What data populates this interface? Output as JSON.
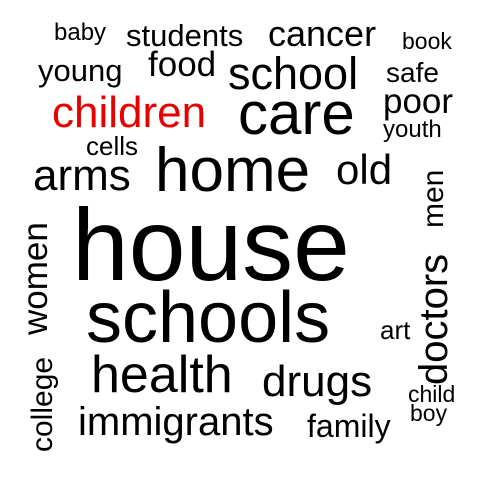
{
  "word_cloud": {
    "highlight_color": "#e60000",
    "text_color": "#000000",
    "background": "#ffffff",
    "words": {
      "baby": "baby",
      "students": "students",
      "cancer": "cancer",
      "book": "book",
      "young": "young",
      "food": "food",
      "school": "school",
      "safe": "safe",
      "children": "children",
      "care": "care",
      "poor": "poor",
      "youth": "youth",
      "cells": "cells",
      "arms": "arms",
      "home": "home",
      "old": "old",
      "men": "men",
      "house": "house",
      "doctors": "doctors",
      "women": "women",
      "schools": "schools",
      "art": "art",
      "college": "college",
      "health": "health",
      "drugs": "drugs",
      "child": "child",
      "boy": "boy",
      "immigrants": "immigrants",
      "family": "family"
    }
  }
}
